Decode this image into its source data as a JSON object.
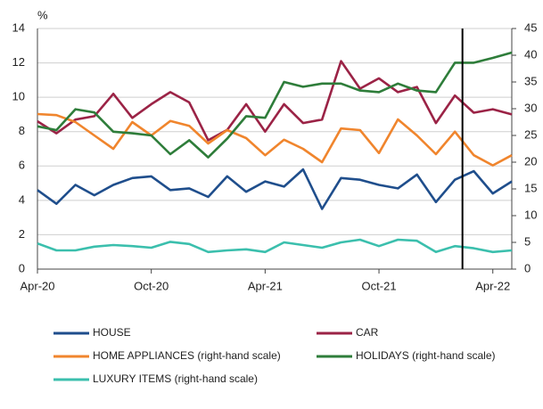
{
  "chart_data": {
    "type": "line",
    "y_unit": "%",
    "categories": [
      "Apr-20",
      null,
      null,
      null,
      null,
      null,
      "Oct-20",
      null,
      null,
      null,
      null,
      null,
      "Apr-21",
      null,
      null,
      null,
      null,
      null,
      "Oct-21",
      null,
      null,
      null,
      null,
      null,
      "Apr-22",
      null
    ],
    "series": [
      {
        "name": "HOUSE",
        "color": "#1f4e8c",
        "values": [
          4.6,
          3.8,
          4.9,
          4.3,
          4.9,
          5.3,
          5.4,
          4.6,
          4.7,
          4.2,
          5.4,
          4.5,
          5.1,
          4.8,
          5.8,
          3.5,
          5.3,
          5.2,
          4.9,
          4.7,
          5.5,
          3.9,
          5.2,
          5.7,
          4.4,
          5.1
        ]
      },
      {
        "name": "CAR",
        "color": "#9b2346",
        "values": [
          8.6,
          7.9,
          8.7,
          8.9,
          10.2,
          8.8,
          9.6,
          10.3,
          9.7,
          7.5,
          8.1,
          9.6,
          8.0,
          9.6,
          8.5,
          8.7,
          12.1,
          10.5,
          11.1,
          10.3,
          10.6,
          8.5,
          10.1,
          9.1,
          9.3,
          9.0
        ]
      },
      {
        "name": "HOME APPLIANCES (right-hand scale)",
        "color": "#f0852d",
        "axis": "y2",
        "values": [
          29,
          28.8,
          27.5,
          25,
          22.5,
          27.5,
          25,
          27.7,
          26.8,
          23.5,
          26,
          24.5,
          21.3,
          24.2,
          22.5,
          20,
          26.3,
          26,
          21.7,
          28,
          25,
          21.5,
          25.7,
          21.3,
          19.4,
          21.3
        ]
      },
      {
        "name": "HOLIDAYS (right-hand scale)",
        "color": "#2e7d3a",
        "axis": "y2",
        "values": [
          26.7,
          26,
          29.9,
          29.3,
          25.7,
          25.4,
          25,
          21.5,
          24.1,
          20.9,
          24.4,
          28.6,
          28.3,
          35,
          34.1,
          34.7,
          34.7,
          33.4,
          33.1,
          34.7,
          33.4,
          33.1,
          38.6,
          38.6,
          39.5,
          40.5
        ]
      },
      {
        "name": "LUXURY ITEMS (right-hand scale)",
        "color": "#3bbfad",
        "axis": "y2",
        "values": [
          4.8,
          3.5,
          3.5,
          4.2,
          4.5,
          4.3,
          4,
          5.1,
          4.7,
          3.2,
          3.5,
          3.7,
          3.2,
          5,
          4.5,
          4,
          5,
          5.5,
          4.3,
          5.5,
          5.3,
          3.2,
          4.3,
          3.9,
          3.2,
          3.5
        ]
      }
    ],
    "ylim": [
      0,
      14
    ],
    "yticks": [
      0,
      2,
      4,
      6,
      8,
      10,
      12,
      14
    ],
    "y2lim": [
      0,
      45
    ],
    "y2ticks": [
      0,
      5,
      10,
      15,
      20,
      25,
      30,
      35,
      40,
      45
    ],
    "grid": true,
    "vline_at": 22.4
  }
}
